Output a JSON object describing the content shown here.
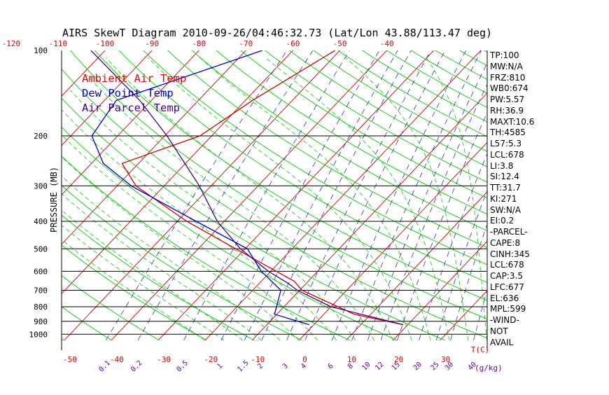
{
  "chart_data": {
    "type": "line",
    "title": "AIRS SkewT Diagram 2010-09-26/04:46:32.73 (Lat/Lon 43.88/113.47 deg)",
    "ylabel": "PRESSURE (MB)",
    "xlabel_temp_unit": "T(C)",
    "xlabel_mix_unit": "(g/kg)",
    "pressure_ticks": [
      100,
      200,
      300,
      400,
      500,
      600,
      700,
      800,
      900,
      1000
    ],
    "pressure_labels": [
      "100",
      "200",
      "300",
      "400",
      "500",
      "600",
      "700",
      "800",
      "900",
      "1000"
    ],
    "ylim": [
      1050,
      100
    ],
    "bottom_temp_ticks": [
      -50,
      -40,
      -30,
      -20,
      -10,
      0,
      10,
      20,
      30
    ],
    "bottom_temp_labels": [
      "-50",
      "-40",
      "-30",
      "-20",
      "-10",
      "0",
      "10",
      "20",
      "30"
    ],
    "top_temp_ticks": [
      -120,
      -110,
      -100,
      -90,
      -80,
      -70,
      -60,
      -50,
      -40
    ],
    "top_temp_labels": [
      "-120",
      "-110",
      "-100",
      "-90",
      "-80",
      "-70",
      "-60",
      "-50",
      "-40"
    ],
    "mixing_ratio_labels": [
      "0.1",
      "0.2",
      "0.5",
      "1",
      "1.5",
      "2",
      "3",
      "4",
      "6",
      "8",
      "10",
      "12",
      "15",
      "20",
      "25",
      "30",
      "40"
    ],
    "legend": [
      "Ambient Air Temp",
      "Dew Point Temp",
      "Air Parcel Temp"
    ],
    "legend_colors": [
      "#ee0000",
      "#0000cc",
      "#440088"
    ],
    "series": [
      {
        "name": "Ambient Air Temp",
        "color": "#cc0000",
        "points": [
          [
            100,
            -51.0
          ],
          [
            150,
            -58.5
          ],
          [
            200,
            -62.5
          ],
          [
            250,
            -73.5
          ],
          [
            300,
            -66.0
          ],
          [
            400,
            -48.0
          ],
          [
            500,
            -32.0
          ],
          [
            650,
            -13.0
          ],
          [
            700,
            -9.5
          ],
          [
            850,
            6.5
          ],
          [
            925,
            19.0
          ]
        ]
      },
      {
        "name": "Dew Point Temp",
        "color": "#0000cc",
        "points": [
          [
            100,
            -66.5
          ],
          [
            150,
            -87.5
          ],
          [
            200,
            -85.5
          ],
          [
            250,
            -77.5
          ],
          [
            300,
            -67.0
          ],
          [
            400,
            -46.0
          ],
          [
            500,
            -29.5
          ],
          [
            600,
            -22.0
          ],
          [
            700,
            -14.0
          ],
          [
            850,
            -10.5
          ],
          [
            925,
            -1.0
          ]
        ]
      },
      {
        "name": "Air Parcel Temp",
        "color": "#440088",
        "points": [
          [
            100,
            -103.0
          ],
          [
            150,
            -82.5
          ],
          [
            200,
            -69.5
          ],
          [
            300,
            -52.5
          ],
          [
            400,
            -41.5
          ],
          [
            500,
            -31.0
          ],
          [
            600,
            -20.5
          ],
          [
            660,
            -14.0
          ],
          [
            700,
            -10.5
          ],
          [
            800,
            0.0
          ],
          [
            925,
            19.0
          ]
        ]
      }
    ]
  },
  "stats": [
    "TP:100",
    "MW:N/A",
    "FRZ:810",
    "WB0:674",
    "PW:5.57",
    "RH:36.9",
    "MAXT:10.6",
    "TH:4585",
    "L57:5.3",
    "LCL:678",
    "LI:3.8",
    "SI:12.4",
    "TT:31.7",
    "KI:271",
    "SW:N/A",
    "EI:0.2",
    "-PARCEL-",
    "CAPE:8",
    "CINH:345",
    "LCL:678",
    "CAP:3.5",
    "LFC:677",
    "EL:636",
    "MPL:599",
    "-WIND-",
    "NOT",
    "AVAIL"
  ],
  "colors": {
    "dry_adiabat": "#00cc00",
    "moist_adiabat": "#00cc00",
    "isotherm": "#cc0000",
    "mixing_ratio": "#3333aa",
    "isobar": "#000000"
  }
}
